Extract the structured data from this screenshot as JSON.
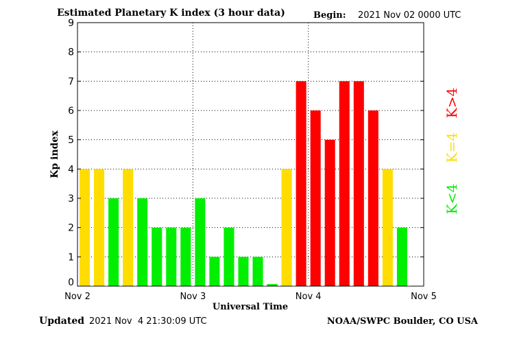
{
  "chart_data": {
    "type": "bar",
    "title": "Estimated Planetary K index (3 hour data)",
    "begin_label": "Begin:",
    "begin_value": "2021 Nov 02 0000 UTC",
    "xlabel": "Universal Time",
    "ylabel": "Kp index",
    "ylim": [
      0,
      9
    ],
    "yticks": [
      "0",
      "1",
      "2",
      "3",
      "4",
      "5",
      "6",
      "7",
      "8",
      "9"
    ],
    "xticks": [
      "Nov 2",
      "Nov 3",
      "Nov 4",
      "Nov 5"
    ],
    "grid": true,
    "bar_interval_hours": 3,
    "values": [
      4,
      4,
      3,
      4,
      3,
      2,
      2,
      2,
      3,
      1,
      2,
      1,
      1,
      0,
      4,
      7,
      6,
      5,
      7,
      7,
      6,
      4,
      2
    ],
    "legend": [
      {
        "label": "K>4",
        "color": "#ff0000"
      },
      {
        "label": "K=4",
        "color": "#ffdd00"
      },
      {
        "label": "K<4",
        "color": "#00ee00"
      }
    ],
    "updated_label": "Updated",
    "updated_value": "2021 Nov  4 21:30:09 UTC",
    "source": "NOAA/SWPC Boulder, CO USA"
  }
}
